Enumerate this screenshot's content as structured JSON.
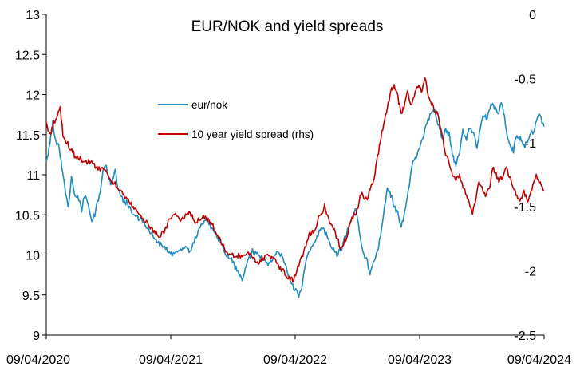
{
  "chart_data": {
    "type": "line",
    "title": "EUR/NOK and yield spreads",
    "x_ticks": [
      "09/04/2020",
      "09/04/2021",
      "09/04/2022",
      "09/04/2023",
      "09/04/2024"
    ],
    "xlim": [
      "2020-04-09",
      "2024-04-09"
    ],
    "y_left": {
      "ylim": [
        9,
        13
      ],
      "ticks": [
        "9",
        "9.5",
        "10",
        "10.5",
        "11",
        "11.5",
        "12",
        "12.5",
        "13"
      ]
    },
    "y_right": {
      "ylim": [
        -2.5,
        0
      ],
      "ticks": [
        "0",
        "-0.5",
        "-1",
        "-1.5",
        "-2",
        "-2.5"
      ]
    },
    "grid": false,
    "legend_placement": "upper-left inside plot",
    "series": [
      {
        "name": "eur/nok",
        "color": "#1f8bc1",
        "axis": "left",
        "points": [
          [
            "2020-04-09",
            11.15
          ],
          [
            "2020-04-20",
            11.4
          ],
          [
            "2020-04-28",
            11.65
          ],
          [
            "2020-05-05",
            11.45
          ],
          [
            "2020-05-15",
            11.35
          ],
          [
            "2020-05-25",
            11.1
          ],
          [
            "2020-06-05",
            10.75
          ],
          [
            "2020-06-12",
            10.6
          ],
          [
            "2020-06-22",
            10.95
          ],
          [
            "2020-07-02",
            10.75
          ],
          [
            "2020-07-13",
            10.7
          ],
          [
            "2020-07-22",
            10.55
          ],
          [
            "2020-07-30",
            10.75
          ],
          [
            "2020-08-10",
            10.6
          ],
          [
            "2020-08-21",
            10.4
          ],
          [
            "2020-09-01",
            10.55
          ],
          [
            "2020-09-14",
            10.8
          ],
          [
            "2020-09-23",
            11.05
          ],
          [
            "2020-10-02",
            11.1
          ],
          [
            "2020-10-15",
            10.9
          ],
          [
            "2020-10-28",
            11.05
          ],
          [
            "2020-11-05",
            10.85
          ],
          [
            "2020-11-18",
            10.7
          ],
          [
            "2020-12-01",
            10.65
          ],
          [
            "2020-12-15",
            10.55
          ],
          [
            "2021-01-05",
            10.45
          ],
          [
            "2021-01-20",
            10.4
          ],
          [
            "2021-02-05",
            10.3
          ],
          [
            "2021-02-20",
            10.2
          ],
          [
            "2021-03-05",
            10.15
          ],
          [
            "2021-03-20",
            10.1
          ],
          [
            "2021-04-05",
            10.05
          ],
          [
            "2021-04-20",
            10.0
          ],
          [
            "2021-05-05",
            10.05
          ],
          [
            "2021-05-20",
            10.1
          ],
          [
            "2021-06-05",
            10.05
          ],
          [
            "2021-06-20",
            10.2
          ],
          [
            "2021-07-05",
            10.35
          ],
          [
            "2021-07-20",
            10.45
          ],
          [
            "2021-08-05",
            10.35
          ],
          [
            "2021-08-20",
            10.25
          ],
          [
            "2021-09-05",
            10.15
          ],
          [
            "2021-09-20",
            10.0
          ],
          [
            "2021-10-05",
            9.95
          ],
          [
            "2021-10-15",
            9.85
          ],
          [
            "2021-10-25",
            9.75
          ],
          [
            "2021-11-05",
            9.7
          ],
          [
            "2021-11-20",
            9.9
          ],
          [
            "2021-12-05",
            10.05
          ],
          [
            "2021-12-20",
            10.0
          ],
          [
            "2022-01-05",
            9.95
          ],
          [
            "2022-01-20",
            9.9
          ],
          [
            "2022-02-05",
            9.95
          ],
          [
            "2022-02-20",
            10.05
          ],
          [
            "2022-03-05",
            9.95
          ],
          [
            "2022-03-20",
            9.75
          ],
          [
            "2022-04-05",
            9.6
          ],
          [
            "2022-04-20",
            9.5
          ],
          [
            "2022-04-28",
            9.55
          ],
          [
            "2022-05-10",
            9.9
          ],
          [
            "2022-05-25",
            10.1
          ],
          [
            "2022-06-10",
            10.2
          ],
          [
            "2022-06-25",
            10.35
          ],
          [
            "2022-07-10",
            10.25
          ],
          [
            "2022-07-25",
            10.1
          ],
          [
            "2022-08-10",
            10.0
          ],
          [
            "2022-08-25",
            10.1
          ],
          [
            "2022-09-10",
            10.3
          ],
          [
            "2022-09-25",
            10.5
          ],
          [
            "2022-10-05",
            10.55
          ],
          [
            "2022-10-15",
            10.3
          ],
          [
            "2022-10-28",
            10.0
          ],
          [
            "2022-11-05",
            9.95
          ],
          [
            "2022-11-15",
            9.75
          ],
          [
            "2022-11-25",
            9.9
          ],
          [
            "2022-12-10",
            10.1
          ],
          [
            "2022-12-25",
            10.5
          ],
          [
            "2023-01-05",
            10.85
          ],
          [
            "2023-01-15",
            10.75
          ],
          [
            "2023-01-25",
            10.6
          ],
          [
            "2023-02-05",
            10.5
          ],
          [
            "2023-02-15",
            10.35
          ],
          [
            "2023-02-25",
            10.55
          ],
          [
            "2023-03-10",
            10.85
          ],
          [
            "2023-03-20",
            11.15
          ],
          [
            "2023-03-28",
            11.2
          ],
          [
            "2023-04-10",
            11.35
          ],
          [
            "2023-04-25",
            11.55
          ],
          [
            "2023-05-10",
            11.75
          ],
          [
            "2023-05-25",
            11.8
          ],
          [
            "2023-06-05",
            11.6
          ],
          [
            "2023-06-15",
            11.45
          ],
          [
            "2023-06-25",
            11.55
          ],
          [
            "2023-07-05",
            11.5
          ],
          [
            "2023-07-15",
            11.25
          ],
          [
            "2023-07-25",
            11.1
          ],
          [
            "2023-08-05",
            11.3
          ],
          [
            "2023-08-15",
            11.55
          ],
          [
            "2023-08-25",
            11.45
          ],
          [
            "2023-09-05",
            11.6
          ],
          [
            "2023-09-15",
            11.5
          ],
          [
            "2023-09-25",
            11.35
          ],
          [
            "2023-10-05",
            11.6
          ],
          [
            "2023-10-15",
            11.75
          ],
          [
            "2023-10-25",
            11.7
          ],
          [
            "2023-11-05",
            11.9
          ],
          [
            "2023-11-15",
            11.85
          ],
          [
            "2023-11-25",
            11.75
          ],
          [
            "2023-12-05",
            11.9
          ],
          [
            "2023-12-12",
            11.8
          ],
          [
            "2023-12-20",
            11.55
          ],
          [
            "2023-12-30",
            11.35
          ],
          [
            "2024-01-10",
            11.3
          ],
          [
            "2024-01-20",
            11.5
          ],
          [
            "2024-01-30",
            11.45
          ],
          [
            "2024-02-10",
            11.35
          ],
          [
            "2024-02-20",
            11.4
          ],
          [
            "2024-03-01",
            11.5
          ],
          [
            "2024-03-10",
            11.55
          ],
          [
            "2024-03-20",
            11.7
          ],
          [
            "2024-03-28",
            11.75
          ],
          [
            "2024-04-03",
            11.65
          ],
          [
            "2024-04-09",
            11.6
          ]
        ]
      },
      {
        "name": "10 year yield spread (rhs)",
        "color": "#c00000",
        "axis": "right",
        "points": [
          [
            "2020-04-09",
            -0.85
          ],
          [
            "2020-04-20",
            -0.95
          ],
          [
            "2020-05-01",
            -0.85
          ],
          [
            "2020-05-10",
            -0.8
          ],
          [
            "2020-05-20",
            -0.72
          ],
          [
            "2020-05-28",
            -0.95
          ],
          [
            "2020-06-08",
            -1.0
          ],
          [
            "2020-06-20",
            -1.05
          ],
          [
            "2020-07-01",
            -1.1
          ],
          [
            "2020-07-15",
            -1.12
          ],
          [
            "2020-08-01",
            -1.15
          ],
          [
            "2020-08-20",
            -1.15
          ],
          [
            "2020-09-05",
            -1.2
          ],
          [
            "2020-09-20",
            -1.2
          ],
          [
            "2020-10-05",
            -1.25
          ],
          [
            "2020-10-20",
            -1.3
          ],
          [
            "2020-11-05",
            -1.35
          ],
          [
            "2020-11-20",
            -1.4
          ],
          [
            "2020-12-05",
            -1.45
          ],
          [
            "2020-12-20",
            -1.5
          ],
          [
            "2021-01-05",
            -1.55
          ],
          [
            "2021-01-20",
            -1.6
          ],
          [
            "2021-02-05",
            -1.65
          ],
          [
            "2021-02-20",
            -1.7
          ],
          [
            "2021-03-05",
            -1.72
          ],
          [
            "2021-03-20",
            -1.7
          ],
          [
            "2021-04-05",
            -1.6
          ],
          [
            "2021-04-20",
            -1.55
          ],
          [
            "2021-05-05",
            -1.6
          ],
          [
            "2021-05-20",
            -1.58
          ],
          [
            "2021-06-05",
            -1.55
          ],
          [
            "2021-06-20",
            -1.62
          ],
          [
            "2021-07-05",
            -1.6
          ],
          [
            "2021-07-20",
            -1.58
          ],
          [
            "2021-08-05",
            -1.62
          ],
          [
            "2021-08-20",
            -1.7
          ],
          [
            "2021-09-05",
            -1.78
          ],
          [
            "2021-09-20",
            -1.85
          ],
          [
            "2021-10-05",
            -1.88
          ],
          [
            "2021-10-20",
            -1.87
          ],
          [
            "2021-11-05",
            -1.9
          ],
          [
            "2021-11-20",
            -1.85
          ],
          [
            "2021-12-05",
            -1.88
          ],
          [
            "2021-12-20",
            -1.95
          ],
          [
            "2022-01-05",
            -1.9
          ],
          [
            "2022-01-20",
            -1.87
          ],
          [
            "2022-02-05",
            -1.9
          ],
          [
            "2022-02-20",
            -1.97
          ],
          [
            "2022-03-05",
            -2.0
          ],
          [
            "2022-03-20",
            -2.05
          ],
          [
            "2022-04-05",
            -2.08
          ],
          [
            "2022-04-20",
            -1.95
          ],
          [
            "2022-05-05",
            -1.85
          ],
          [
            "2022-05-20",
            -1.72
          ],
          [
            "2022-06-05",
            -1.68
          ],
          [
            "2022-06-20",
            -1.57
          ],
          [
            "2022-07-05",
            -1.5
          ],
          [
            "2022-07-20",
            -1.62
          ],
          [
            "2022-08-05",
            -1.7
          ],
          [
            "2022-08-20",
            -1.82
          ],
          [
            "2022-09-05",
            -1.75
          ],
          [
            "2022-09-20",
            -1.6
          ],
          [
            "2022-10-05",
            -1.55
          ],
          [
            "2022-10-20",
            -1.4
          ],
          [
            "2022-11-05",
            -1.45
          ],
          [
            "2022-11-15",
            -1.35
          ],
          [
            "2022-11-25",
            -1.3
          ],
          [
            "2022-12-05",
            -1.15
          ],
          [
            "2022-12-15",
            -1.0
          ],
          [
            "2022-12-25",
            -0.85
          ],
          [
            "2023-01-05",
            -0.72
          ],
          [
            "2023-01-15",
            -0.6
          ],
          [
            "2023-01-25",
            -0.55
          ],
          [
            "2023-02-05",
            -0.65
          ],
          [
            "2023-02-15",
            -0.78
          ],
          [
            "2023-02-25",
            -0.7
          ],
          [
            "2023-03-05",
            -0.6
          ],
          [
            "2023-03-15",
            -0.72
          ],
          [
            "2023-03-25",
            -0.62
          ],
          [
            "2023-04-05",
            -0.55
          ],
          [
            "2023-04-15",
            -0.6
          ],
          [
            "2023-04-25",
            -0.5
          ],
          [
            "2023-05-05",
            -0.62
          ],
          [
            "2023-05-15",
            -0.7
          ],
          [
            "2023-05-25",
            -0.75
          ],
          [
            "2023-06-05",
            -0.8
          ],
          [
            "2023-06-15",
            -0.95
          ],
          [
            "2023-06-25",
            -1.1
          ],
          [
            "2023-07-05",
            -1.15
          ],
          [
            "2023-07-15",
            -1.25
          ],
          [
            "2023-07-25",
            -1.3
          ],
          [
            "2023-08-05",
            -1.25
          ],
          [
            "2023-08-15",
            -1.35
          ],
          [
            "2023-08-25",
            -1.4
          ],
          [
            "2023-09-05",
            -1.5
          ],
          [
            "2023-09-12",
            -1.55
          ],
          [
            "2023-09-20",
            -1.45
          ],
          [
            "2023-10-01",
            -1.3
          ],
          [
            "2023-10-10",
            -1.35
          ],
          [
            "2023-10-20",
            -1.4
          ],
          [
            "2023-11-01",
            -1.35
          ],
          [
            "2023-11-10",
            -1.2
          ],
          [
            "2023-11-20",
            -1.25
          ],
          [
            "2023-12-01",
            -1.3
          ],
          [
            "2023-12-10",
            -1.25
          ],
          [
            "2023-12-20",
            -1.2
          ],
          [
            "2024-01-01",
            -1.28
          ],
          [
            "2024-01-10",
            -1.35
          ],
          [
            "2024-01-20",
            -1.42
          ],
          [
            "2024-02-01",
            -1.45
          ],
          [
            "2024-02-10",
            -1.38
          ],
          [
            "2024-02-20",
            -1.45
          ],
          [
            "2024-03-01",
            -1.4
          ],
          [
            "2024-03-10",
            -1.3
          ],
          [
            "2024-03-17",
            -1.25
          ],
          [
            "2024-03-25",
            -1.3
          ],
          [
            "2024-04-01",
            -1.35
          ],
          [
            "2024-04-09",
            -1.38
          ]
        ]
      }
    ]
  }
}
